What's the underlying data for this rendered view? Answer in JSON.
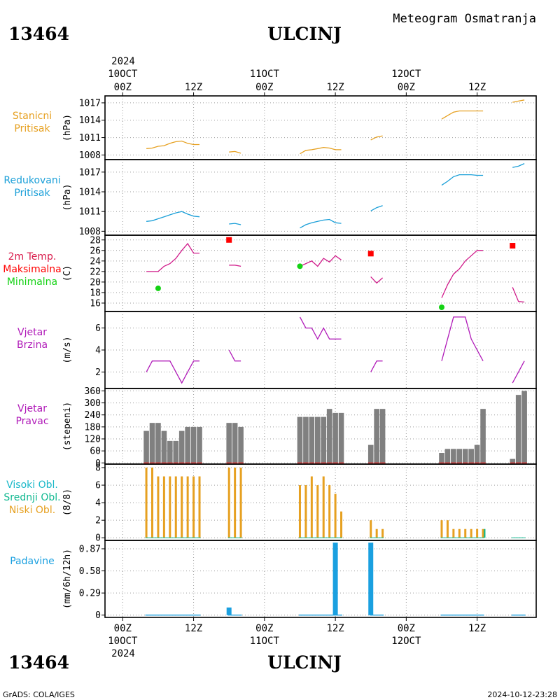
{
  "header": {
    "station_id": "13464",
    "station_name": "ULCINJ",
    "subtitle": "Meteogram Osmatranja"
  },
  "footer": {
    "station_id": "13464",
    "station_name": "ULCINJ",
    "credit": "GrADS: COLA/IGES",
    "timestamp": "2024-10-12-23:28"
  },
  "time_axis": {
    "year": "2024",
    "day_labels": [
      "10OCT",
      "11OCT",
      "12OCT"
    ],
    "hour_labels": [
      "00Z",
      "12Z",
      "00Z",
      "12Z",
      "00Z",
      "12Z"
    ],
    "tick_hours": [
      0,
      12,
      24,
      36,
      48,
      60
    ],
    "range_hours": [
      -3,
      70
    ]
  },
  "chart_data": [
    {
      "id": "station_pressure",
      "type": "line",
      "label_lines": [
        "Stanicni",
        "Pritisak"
      ],
      "ylabel": "(hPa)",
      "yticks": [
        "1008",
        "1011",
        "1014",
        "1017"
      ],
      "ylim": [
        1007.2,
        1018.2
      ],
      "color": "#e6a020",
      "segments": [
        [
          [
            4,
            1009.1
          ],
          [
            5,
            1009.2
          ],
          [
            6,
            1009.5
          ],
          [
            7,
            1009.6
          ],
          [
            8,
            1010.0
          ],
          [
            9,
            1010.3
          ],
          [
            10,
            1010.4
          ],
          [
            11,
            1010.0
          ],
          [
            12,
            1009.8
          ],
          [
            13,
            1009.8
          ]
        ],
        [
          [
            18,
            1008.5
          ],
          [
            19,
            1008.6
          ],
          [
            20,
            1008.3
          ]
        ],
        [
          [
            30,
            1008.2
          ],
          [
            31,
            1008.8
          ],
          [
            32,
            1008.9
          ],
          [
            33,
            1009.1
          ],
          [
            34,
            1009.3
          ],
          [
            35,
            1009.2
          ],
          [
            36,
            1008.9
          ],
          [
            37,
            1008.9
          ]
        ],
        [
          [
            42,
            1010.6
          ],
          [
            43,
            1011.1
          ],
          [
            44,
            1011.3
          ]
        ],
        [
          [
            54,
            1014.2
          ],
          [
            55,
            1014.8
          ],
          [
            56,
            1015.4
          ],
          [
            57,
            1015.6
          ],
          [
            58,
            1015.6
          ],
          [
            59,
            1015.6
          ],
          [
            60,
            1015.6
          ],
          [
            61,
            1015.6
          ]
        ],
        [
          [
            66,
            1017.1
          ],
          [
            67,
            1017.3
          ],
          [
            68,
            1017.5
          ]
        ]
      ]
    },
    {
      "id": "reduced_pressure",
      "type": "line",
      "label_lines": [
        "Redukovani",
        "Pritisak"
      ],
      "ylabel": "(hPa)",
      "yticks": [
        "1008",
        "1011",
        "1014",
        "1017"
      ],
      "ylim": [
        1007.4,
        1018.9
      ],
      "color": "#1a9fd8",
      "segments": [
        [
          [
            4,
            1009.5
          ],
          [
            5,
            1009.6
          ],
          [
            6,
            1009.9
          ],
          [
            7,
            1010.2
          ],
          [
            8,
            1010.5
          ],
          [
            9,
            1010.8
          ],
          [
            10,
            1011.0
          ],
          [
            11,
            1010.6
          ],
          [
            12,
            1010.3
          ],
          [
            13,
            1010.2
          ]
        ],
        [
          [
            18,
            1009.1
          ],
          [
            19,
            1009.2
          ],
          [
            20,
            1009.0
          ]
        ],
        [
          [
            30,
            1008.5
          ],
          [
            31,
            1009.0
          ],
          [
            32,
            1009.3
          ],
          [
            33,
            1009.5
          ],
          [
            34,
            1009.7
          ],
          [
            35,
            1009.8
          ],
          [
            36,
            1009.3
          ],
          [
            37,
            1009.2
          ]
        ],
        [
          [
            42,
            1011.1
          ],
          [
            43,
            1011.6
          ],
          [
            44,
            1011.9
          ]
        ],
        [
          [
            54,
            1015.0
          ],
          [
            55,
            1015.6
          ],
          [
            56,
            1016.3
          ],
          [
            57,
            1016.6
          ],
          [
            58,
            1016.6
          ],
          [
            59,
            1016.6
          ],
          [
            60,
            1016.5
          ],
          [
            61,
            1016.5
          ]
        ],
        [
          [
            66,
            1017.7
          ],
          [
            67,
            1017.9
          ],
          [
            68,
            1018.3
          ]
        ]
      ]
    },
    {
      "id": "temperature_2m",
      "type": "line",
      "label_lines": [
        "2m Temp.",
        "Maksimalna",
        "Minimalna"
      ],
      "label_colors": [
        "#d81a4a",
        "#ff0000",
        "#14d214"
      ],
      "ylabel": "(C)",
      "yticks": [
        "16",
        "18",
        "20",
        "22",
        "24",
        "26",
        "28"
      ],
      "ylim": [
        14.4,
        28.9
      ],
      "color": "#d01a8a",
      "segments": [
        [
          [
            4,
            22.0
          ],
          [
            5,
            22.0
          ],
          [
            6,
            22.0
          ],
          [
            7,
            23.0
          ],
          [
            8,
            23.5
          ],
          [
            9,
            24.5
          ],
          [
            10,
            26.0
          ],
          [
            11,
            27.3
          ],
          [
            12,
            25.5
          ],
          [
            13,
            25.5
          ]
        ],
        [
          [
            18,
            23.2
          ],
          [
            19,
            23.2
          ],
          [
            20,
            23.0
          ]
        ],
        [
          [
            30,
            23.0
          ],
          [
            31,
            23.5
          ],
          [
            32,
            24.0
          ],
          [
            33,
            23.0
          ],
          [
            34,
            24.5
          ],
          [
            35,
            23.8
          ],
          [
            36,
            25.0
          ],
          [
            37,
            24.2
          ]
        ],
        [
          [
            42,
            21.0
          ],
          [
            43,
            19.8
          ],
          [
            44,
            20.8
          ]
        ],
        [
          [
            54,
            17.0
          ],
          [
            55,
            19.5
          ],
          [
            56,
            21.5
          ],
          [
            57,
            22.5
          ],
          [
            58,
            24.0
          ],
          [
            59,
            25.0
          ],
          [
            60,
            26.0
          ],
          [
            61,
            26.0
          ]
        ],
        [
          [
            66,
            19.0
          ],
          [
            67,
            16.3
          ],
          [
            68,
            16.2
          ]
        ]
      ],
      "max_points": [
        [
          18,
          28.0
        ],
        [
          42,
          25.4
        ],
        [
          66,
          26.9
        ]
      ],
      "min_points": [
        [
          6,
          18.8
        ],
        [
          30,
          23.0
        ],
        [
          54,
          15.2
        ]
      ],
      "max_color": "#ff0000",
      "min_color": "#14d214"
    },
    {
      "id": "wind_speed",
      "type": "line",
      "label_lines": [
        "Vjetar",
        "Brzina"
      ],
      "ylabel": "(m/s)",
      "yticks": [
        "2",
        "4",
        "6"
      ],
      "ylim": [
        0.5,
        7.5
      ],
      "color": "#b01ab8",
      "segments": [
        [
          [
            4,
            2
          ],
          [
            5,
            3
          ],
          [
            6,
            3
          ],
          [
            7,
            3
          ],
          [
            8,
            3
          ],
          [
            9,
            2
          ],
          [
            10,
            1
          ],
          [
            11,
            2
          ],
          [
            12,
            3
          ],
          [
            13,
            3
          ]
        ],
        [
          [
            18,
            4
          ],
          [
            19,
            3
          ],
          [
            20,
            3
          ]
        ],
        [
          [
            30,
            7
          ],
          [
            31,
            6
          ],
          [
            32,
            6
          ],
          [
            33,
            5
          ],
          [
            34,
            6
          ],
          [
            35,
            5
          ],
          [
            36,
            5
          ],
          [
            37,
            5
          ]
        ],
        [
          [
            42,
            2
          ],
          [
            43,
            3
          ],
          [
            44,
            3
          ]
        ],
        [
          [
            54,
            3
          ],
          [
            55,
            5
          ],
          [
            56,
            7
          ],
          [
            57,
            7
          ],
          [
            58,
            7
          ],
          [
            59,
            5
          ],
          [
            60,
            4
          ],
          [
            61,
            3
          ]
        ],
        [
          [
            66,
            1
          ],
          [
            67,
            2
          ],
          [
            68,
            3
          ]
        ]
      ]
    },
    {
      "id": "wind_direction",
      "type": "bar",
      "label_lines": [
        "Vjetar",
        "Pravac"
      ],
      "ylabel": "(stepeni)",
      "yticks": [
        "0",
        "60",
        "120",
        "180",
        "240",
        "300",
        "360"
      ],
      "ylim": [
        -6,
        372
      ],
      "color": "#808080",
      "baseline_color": "#e02020",
      "x": [
        4,
        5,
        6,
        7,
        8,
        9,
        10,
        11,
        12,
        13,
        18,
        19,
        20,
        30,
        31,
        32,
        33,
        34,
        35,
        36,
        37,
        42,
        43,
        44,
        54,
        55,
        56,
        57,
        58,
        59,
        60,
        61,
        66,
        67,
        68
      ],
      "values": [
        160,
        200,
        200,
        160,
        110,
        110,
        160,
        180,
        180,
        180,
        200,
        200,
        180,
        230,
        230,
        230,
        230,
        230,
        270,
        250,
        250,
        90,
        270,
        270,
        50,
        70,
        70,
        70,
        70,
        70,
        90,
        270,
        20,
        340,
        360
      ]
    },
    {
      "id": "cloud_cover",
      "type": "bar",
      "label_lines": [
        "Visoki Obl.",
        "Srednji Obl.",
        "Niski Obl."
      ],
      "label_colors": [
        "#1ab8c8",
        "#10b890",
        "#e6a020"
      ],
      "ylabel": "(8/8)",
      "yticks": [
        "0",
        "2",
        "4",
        "6",
        "8"
      ],
      "ylim": [
        -0.3,
        8.4
      ],
      "series": [
        {
          "name": "Niski Obl.",
          "color": "#e6a020",
          "x": [
            4,
            5,
            6,
            7,
            8,
            9,
            10,
            11,
            12,
            13,
            18,
            19,
            20,
            30,
            31,
            32,
            33,
            34,
            35,
            36,
            37,
            42,
            43,
            44,
            54,
            55,
            56,
            57,
            58,
            59,
            60,
            61,
            66,
            67,
            68
          ],
          "values": [
            8,
            8,
            7,
            7,
            7,
            7,
            7,
            7,
            7,
            7,
            8,
            8,
            8,
            6,
            6,
            7,
            6,
            7,
            6,
            5,
            3,
            2,
            1,
            1,
            2,
            2,
            1,
            1,
            1,
            1,
            1,
            1,
            0,
            0,
            0
          ]
        },
        {
          "name": "Srednji Obl.",
          "color": "#10b890",
          "x": [
            61
          ],
          "values": [
            1
          ]
        },
        {
          "name": "Visoki Obl.",
          "color": "#1ab8c8",
          "x": [],
          "values": []
        }
      ]
    },
    {
      "id": "precipitation",
      "type": "bar",
      "label_lines": [
        "Padavine"
      ],
      "ylabel": "(mm/6h/12h)",
      "yticks": [
        "0",
        "0.29",
        "0.58",
        "0.87"
      ],
      "ylim": [
        -0.03,
        0.98
      ],
      "color": "#1aa0e0",
      "x": [
        18,
        36,
        42
      ],
      "values": [
        0.1,
        0.95,
        0.95
      ],
      "trace_segments": [
        [
          4,
          13
        ],
        [
          18,
          20
        ],
        [
          30,
          37
        ],
        [
          42,
          44
        ],
        [
          54,
          61
        ],
        [
          66,
          68
        ]
      ]
    }
  ]
}
